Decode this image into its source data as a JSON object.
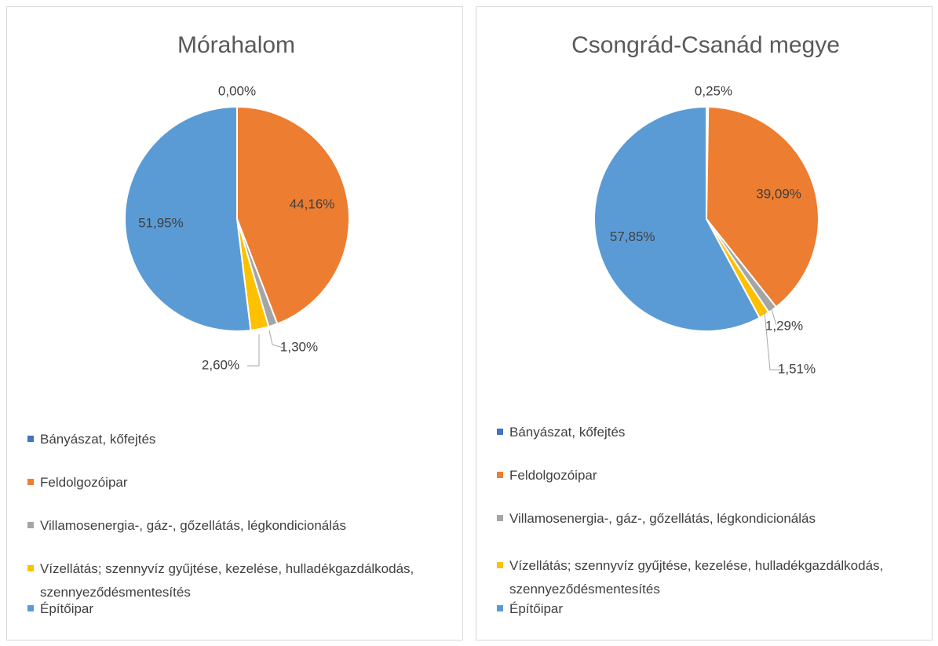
{
  "chart_data": [
    {
      "type": "pie",
      "title": "Mórahalom",
      "categories": [
        "Bányászat, kőfejtés",
        "Feldolgozóipar",
        "Villamosenergia-, gáz-, gőzellátás, légkondicionálás",
        "Vízellátás; szennyvíz gyűjtése, kezelése, hulladékgazdálkodás, szennyeződésmentesítés",
        "Építőipar"
      ],
      "values": [
        0.0,
        44.16,
        1.3,
        2.6,
        51.95
      ],
      "value_labels": [
        "0,00%",
        "44,16%",
        "1,30%",
        "2,60%",
        "51,95%"
      ],
      "colors": [
        "#4472c4",
        "#ed7d31",
        "#a5a5a5",
        "#ffc000",
        "#5b9bd5"
      ]
    },
    {
      "type": "pie",
      "title": "Csongrád-Csanád megye",
      "categories": [
        "Bányászat, kőfejtés",
        "Feldolgozóipar",
        "Villamosenergia-, gáz-, gőzellátás, légkondicionálás",
        "Vízellátás; szennyvíz gyűjtése, kezelése, hulladékgazdálkodás, szennyeződésmentesítés",
        "Építőipar"
      ],
      "values": [
        0.25,
        39.09,
        1.29,
        1.51,
        57.85
      ],
      "value_labels": [
        "0,25%",
        "39,09%",
        "1,29%",
        "1,51%",
        "57,85%"
      ],
      "colors": [
        "#4472c4",
        "#ed7d31",
        "#a5a5a5",
        "#ffc000",
        "#5b9bd5"
      ]
    }
  ]
}
